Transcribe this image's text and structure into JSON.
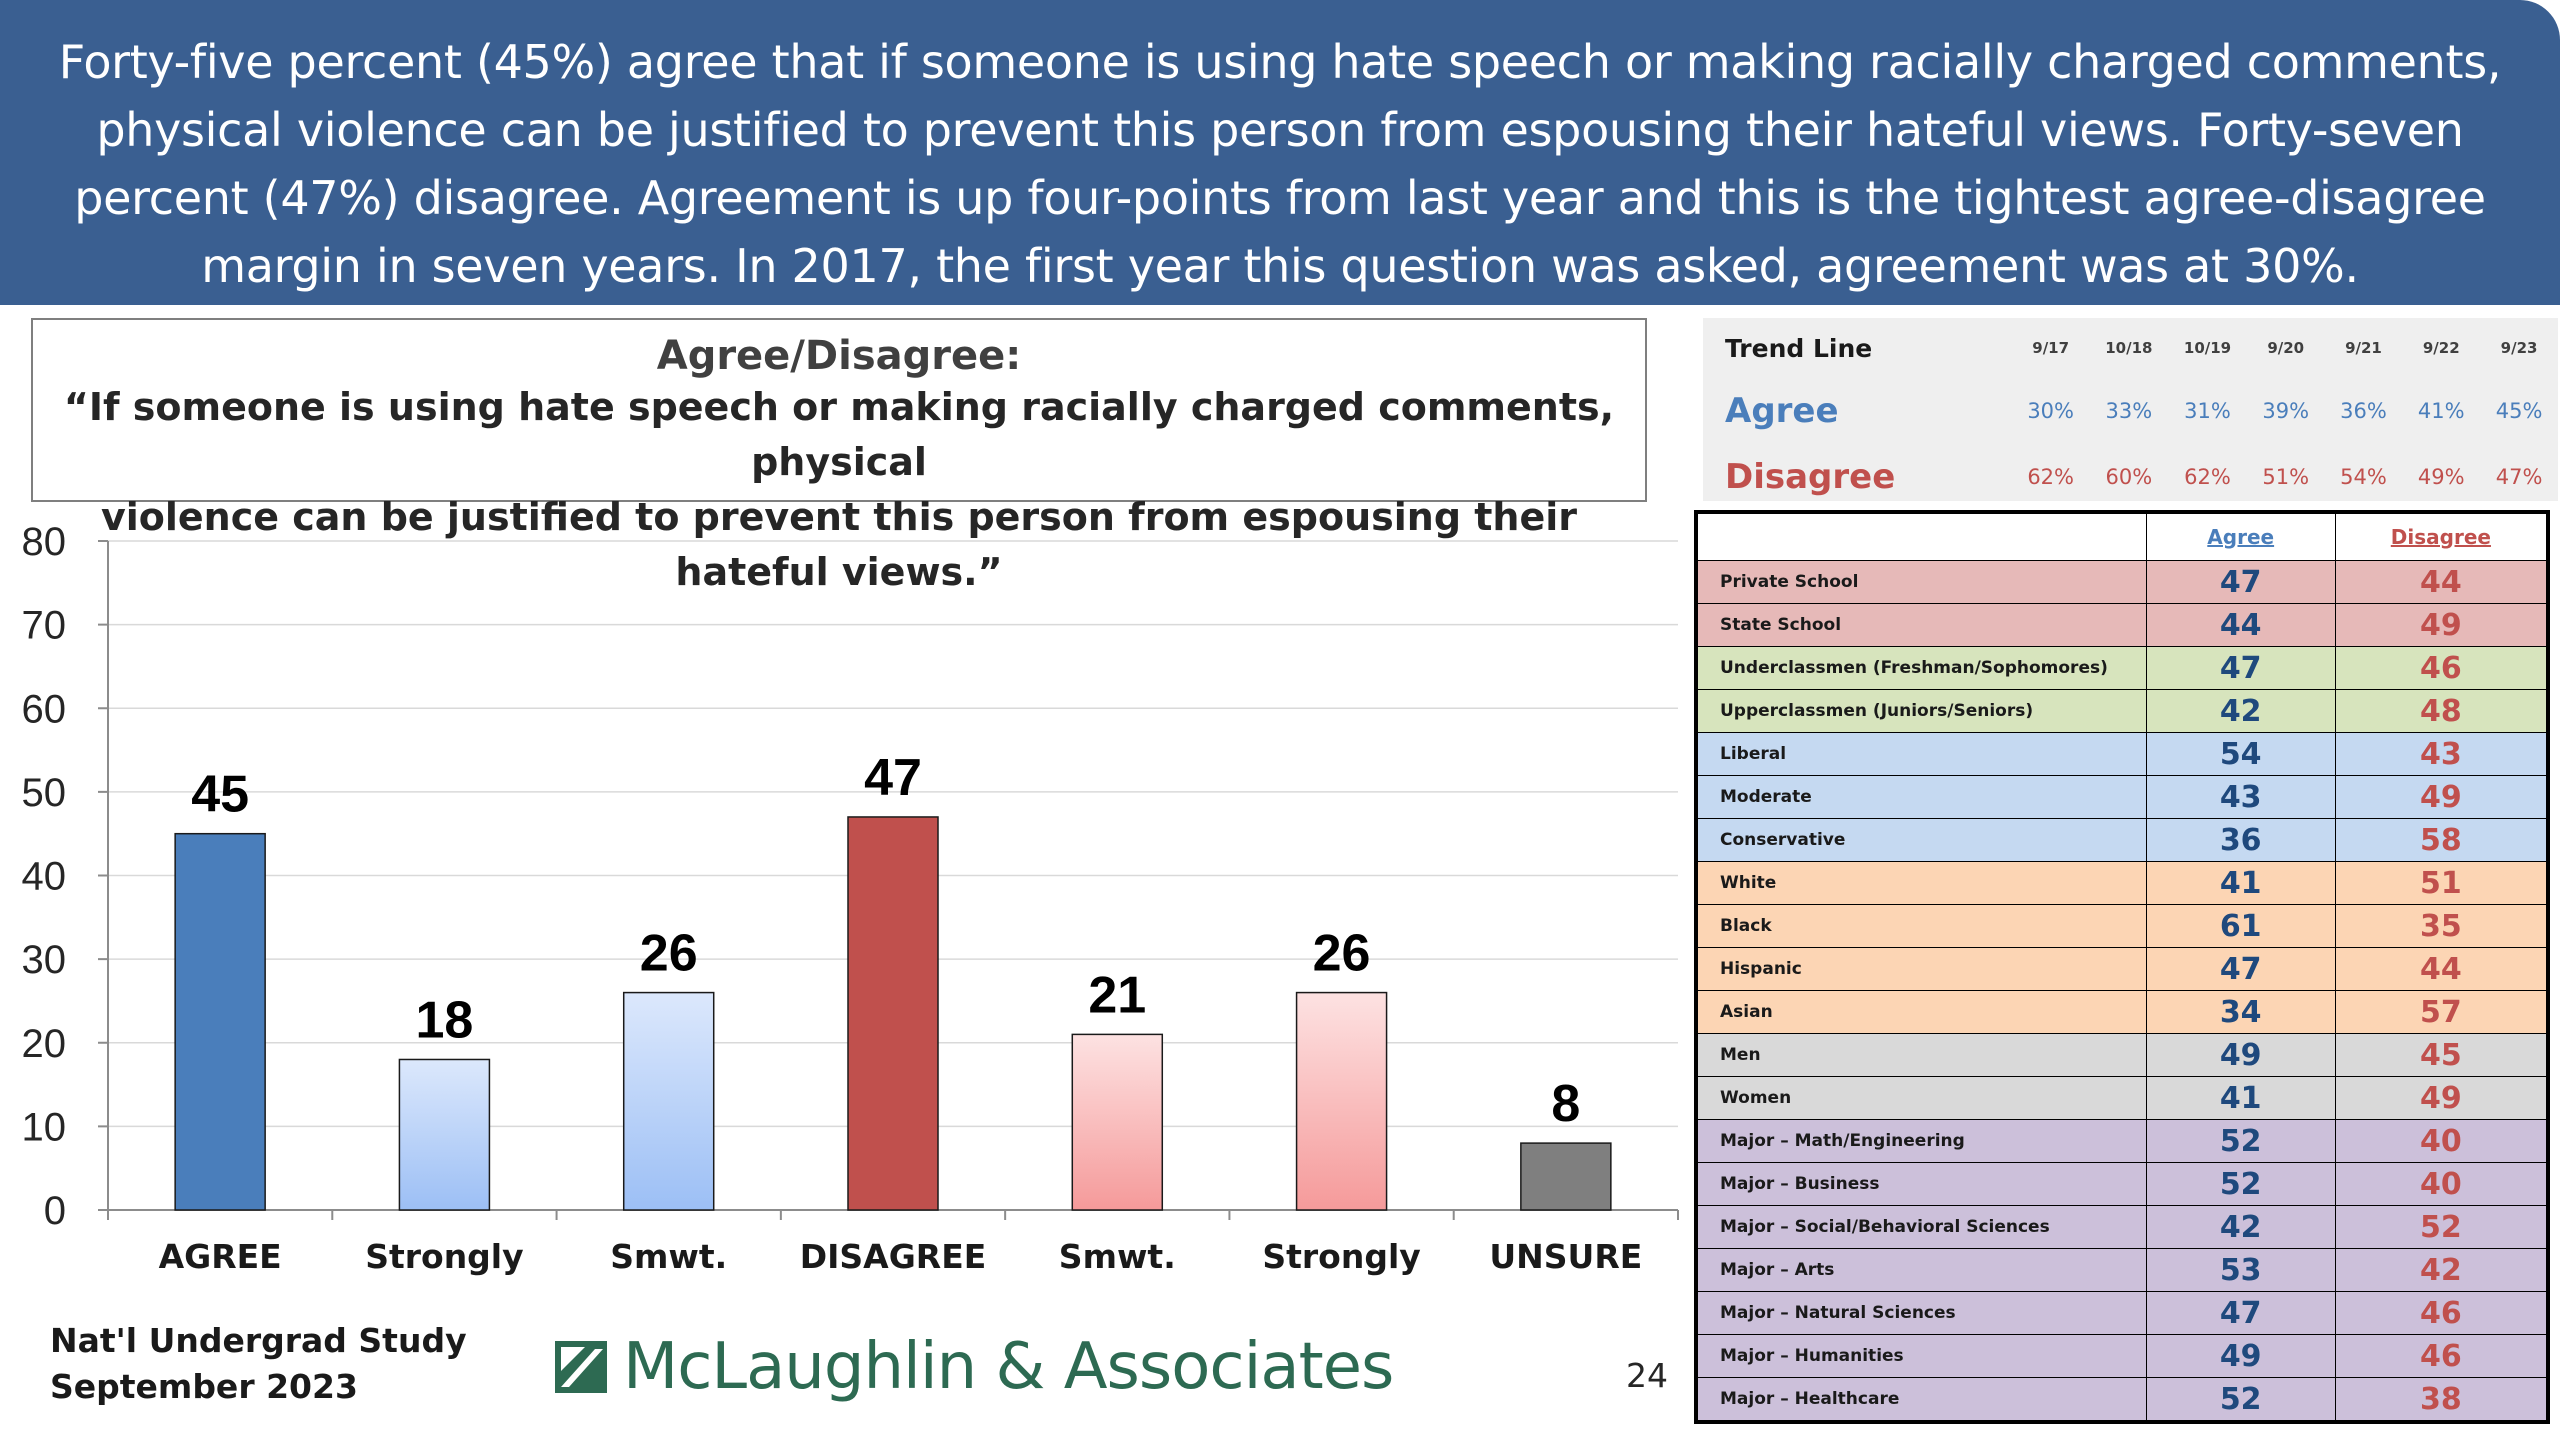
{
  "header": {
    "text": "Forty-five percent (45%) agree that if someone is using hate speech or making racially charged comments, physical violence can be justified to prevent this person from espousing their hateful views. Forty-seven percent (47%) disagree. Agreement is up four-points from last year and this is the tightest agree-disagree margin in seven years. In 2017, the first year this question was asked, agreement was at 30%."
  },
  "question": {
    "title": "Agree/Disagree:",
    "line1": "“If someone is using hate speech or making racially charged comments, physical",
    "line2": "violence can be justified to prevent this person from espousing their hateful views.”"
  },
  "chart_data": {
    "type": "bar",
    "categories": [
      "AGREE",
      "Strongly",
      "Smwt.",
      "DISAGREE",
      "Smwt.",
      "Strongly",
      "UNSURE"
    ],
    "values": [
      45,
      18,
      26,
      47,
      21,
      26,
      8
    ],
    "ylim": [
      0,
      80
    ],
    "yticks": [
      0,
      10,
      20,
      30,
      40,
      50,
      60,
      70,
      80
    ],
    "grid": true,
    "colors": [
      "#4a7ebb",
      "#cfe0fa",
      "#cfe0fa",
      "#c0504d",
      "#fbd5d5",
      "#fbd5d5",
      "#7f7f7f"
    ]
  },
  "footer": {
    "study_line1": "Nat'l Undergrad Study",
    "study_line2": "September 2023",
    "logo_text": "McLaughlin & Associates",
    "page_number": "24"
  },
  "trend": {
    "title": "Trend Line",
    "dates": [
      "9/17",
      "10/18",
      "10/19",
      "9/20",
      "9/21",
      "9/22",
      "9/23"
    ],
    "agree_label": "Agree",
    "agree": [
      "30%",
      "33%",
      "31%",
      "39%",
      "36%",
      "41%",
      "45%"
    ],
    "disagree_label": "Disagree",
    "disagree": [
      "62%",
      "60%",
      "62%",
      "51%",
      "54%",
      "49%",
      "47%"
    ]
  },
  "demographics": {
    "headers": {
      "agree": "Agree",
      "disagree": "Disagree"
    },
    "group_colors": [
      "#e6b9b8",
      "#d7e4bd",
      "#c5d9f1",
      "#fcd5b4",
      "#d9d9d9",
      "#ccc0da"
    ],
    "rows": [
      {
        "label": "Private School",
        "agree": "47",
        "disagree": "44",
        "group": 0
      },
      {
        "label": "State School",
        "agree": "44",
        "disagree": "49",
        "group": 0
      },
      {
        "label": "Underclassmen (Freshman/Sophomores)",
        "agree": "47",
        "disagree": "46",
        "group": 1
      },
      {
        "label": "Upperclassmen (Juniors/Seniors)",
        "agree": "42",
        "disagree": "48",
        "group": 1
      },
      {
        "label": "Liberal",
        "agree": "54",
        "disagree": "43",
        "group": 2
      },
      {
        "label": "Moderate",
        "agree": "43",
        "disagree": "49",
        "group": 2
      },
      {
        "label": "Conservative",
        "agree": "36",
        "disagree": "58",
        "group": 2
      },
      {
        "label": "White",
        "agree": "41",
        "disagree": "51",
        "group": 3
      },
      {
        "label": "Black",
        "agree": "61",
        "disagree": "35",
        "group": 3
      },
      {
        "label": "Hispanic",
        "agree": "47",
        "disagree": "44",
        "group": 3
      },
      {
        "label": "Asian",
        "agree": "34",
        "disagree": "57",
        "group": 3
      },
      {
        "label": "Men",
        "agree": "49",
        "disagree": "45",
        "group": 4
      },
      {
        "label": "Women",
        "agree": "41",
        "disagree": "49",
        "group": 4
      },
      {
        "label": "Major – Math/Engineering",
        "agree": "52",
        "disagree": "40",
        "group": 5
      },
      {
        "label": "Major – Business",
        "agree": "52",
        "disagree": "40",
        "group": 5
      },
      {
        "label": "Major – Social/Behavioral Sciences",
        "agree": "42",
        "disagree": "52",
        "group": 5
      },
      {
        "label": "Major – Arts",
        "agree": "53",
        "disagree": "42",
        "group": 5
      },
      {
        "label": "Major – Natural Sciences",
        "agree": "47",
        "disagree": "46",
        "group": 5
      },
      {
        "label": "Major – Humanities",
        "agree": "49",
        "disagree": "46",
        "group": 5
      },
      {
        "label": "Major – Healthcare",
        "agree": "52",
        "disagree": "38",
        "group": 5
      }
    ]
  }
}
